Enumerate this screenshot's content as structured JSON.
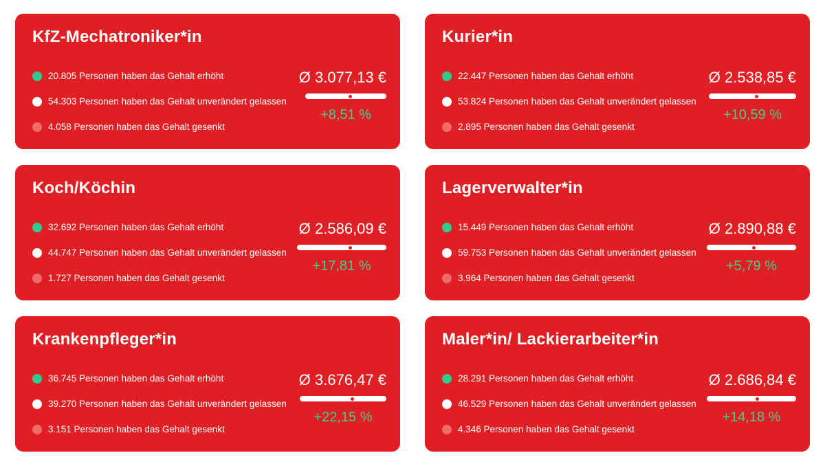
{
  "colors": {
    "card": "#e01f24",
    "up": "#2ecc8f",
    "same": "#ffffff",
    "down": "#f26b6b",
    "pct": "#3fd08f"
  },
  "cards": [
    {
      "title": "KfZ-Mechatroniker*in",
      "up": "20.805 Personen haben das Gehalt erhöht",
      "same": "54.303 Personen haben das Gehalt unverändert gelassen",
      "down": "4.058 Personen haben das Gehalt gesenkt",
      "avg": "Ø 3.077,13 €",
      "change": "+8,51 %",
      "marker_fraction": 0.55
    },
    {
      "title": "Kurier*in",
      "up": "22.447 Personen haben das Gehalt erhöht",
      "same": "53.824 Personen haben das Gehalt unverändert gelassen",
      "down": "2.895 Personen haben das Gehalt gesenkt",
      "avg": "Ø 2.538,85 €",
      "change": "+10,59 %",
      "marker_fraction": 0.54
    },
    {
      "title": "Koch/Köchin",
      "up": "32.692 Personen haben das Gehalt erhöht",
      "same": "44.747 Personen haben das Gehalt unverändert gelassen",
      "down": "1.727 Personen haben das Gehalt gesenkt",
      "avg": "Ø 2.586,09 €",
      "change": "+17,81 %",
      "marker_fraction": 0.59
    },
    {
      "title": "Lagerverwalter*in",
      "up": "15.449 Personen haben das Gehalt erhöht",
      "same": "59.753 Personen haben das Gehalt unverändert gelassen",
      "down": "3.964 Personen haben das Gehalt gesenkt",
      "avg": "Ø 2.890,88 €",
      "change": "+5,79 %",
      "marker_fraction": 0.52
    },
    {
      "title": "Krankenpfleger*in",
      "up": "36.745 Personen haben das Gehalt erhöht",
      "same": "39.270 Personen haben das Gehalt unverändert gelassen",
      "down": "3.151 Personen haben das Gehalt gesenkt",
      "avg": "Ø 3.676,47 €",
      "change": "+22,15 %",
      "marker_fraction": 0.6
    },
    {
      "title": "Maler*in/ Lackierarbeiter*in",
      "up": "28.291 Personen haben das Gehalt erhöht",
      "same": "46.529 Personen haben das Gehalt unverändert gelassen",
      "down": "4.346 Personen haben das Gehalt gesenkt",
      "avg": "Ø 2.686,84 €",
      "change": "+14,18 %",
      "marker_fraction": 0.56
    }
  ]
}
